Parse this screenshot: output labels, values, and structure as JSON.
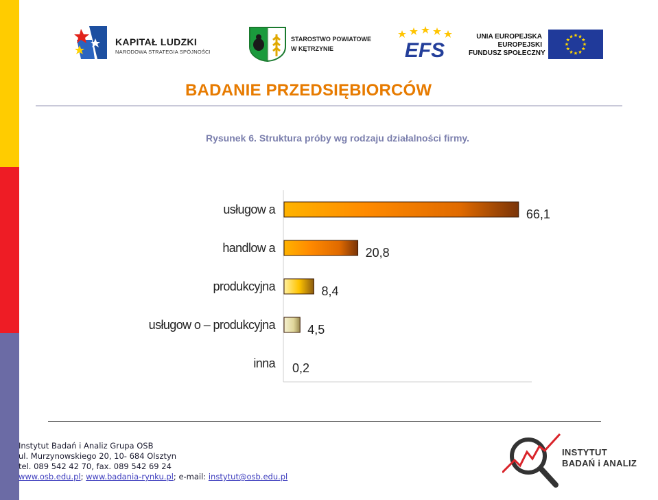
{
  "header": {
    "logo_kapital": {
      "title": "KAPITAŁ LUDZKI",
      "subtitle": "NARODOWA STRATEGIA SPÓJNOŚCI"
    },
    "logo_starostwo": {
      "line1": "STAROSTWO POWIATOWE",
      "line2": "W KĘTRZYNIE"
    },
    "logo_efs": {
      "text": "EFS"
    },
    "logo_ue": {
      "line1": "UNIA EUROPEJSKA",
      "line2": "EUROPEJSKI",
      "line3": "FUNDUSZ SPOŁECZNY"
    }
  },
  "page": {
    "title": "BADANIE PRZEDSIĘBIORCÓW",
    "caption": "Rysunek 6. Struktura próby wg rodzaju działalności firmy."
  },
  "chart_data": {
    "type": "bar",
    "orientation": "horizontal",
    "categories": [
      "usługow a",
      "handlow a",
      "produkcyjna",
      "usługow o – produkcyjna",
      "inna"
    ],
    "values": [
      66.1,
      20.8,
      8.4,
      4.5,
      0.2
    ],
    "value_labels": [
      "66,1",
      "20,8",
      "8,4",
      "4,5",
      "0,2"
    ],
    "xlim": [
      0,
      70
    ],
    "colors": {
      "dark": "#6b2d05",
      "mid": "#ff7a00",
      "light": "#ffb300",
      "pale": "#e9e3bb"
    }
  },
  "footer": {
    "line1": "Instytut Badań i Analiz Grupa OSB",
    "line2": "ul. Murzynowskiego 20, 10- 684 Olsztyn",
    "line3": "tel. 089 542 42 70, fax. 089 542 69 24",
    "link1": "www.osb.edu.pl",
    "sep1": "; ",
    "link2": "www.badania-rynku.pl",
    "sep2": "; e-mail: ",
    "email": "instytut@osb.edu.pl",
    "osb_line1": "INSTYTUT",
    "osb_line2": "BADAŃ i ANALIZ"
  }
}
